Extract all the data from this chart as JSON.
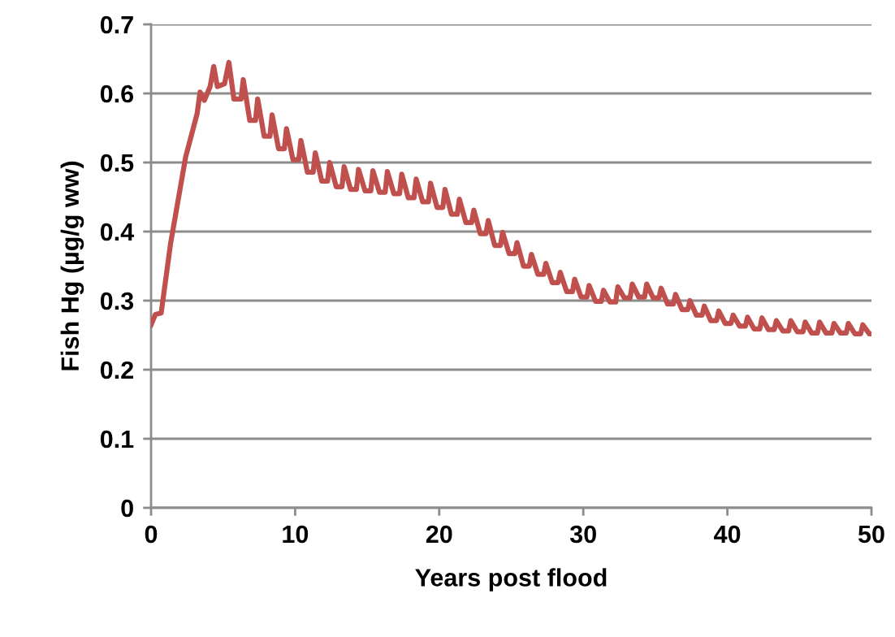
{
  "chart_data": {
    "type": "line",
    "xlabel": "Years post flood",
    "ylabel": "Fish Hg (µg/g ww)",
    "xlim": [
      0,
      50
    ],
    "xticks": [
      0,
      10,
      20,
      30,
      40,
      50
    ],
    "ylim": [
      0,
      0.7
    ],
    "yticks": [
      0,
      0.1,
      0.2,
      0.3,
      0.4,
      0.5,
      0.6,
      0.7
    ],
    "grid": "y",
    "marker": "none",
    "line_style": "solid",
    "series": [
      {
        "color": "#c0504d",
        "x": [
          0,
          0.3,
          0.7,
          1.35,
          2.4,
          3.2,
          3.4,
          3.7,
          4.1,
          4.35,
          4.6,
          5.1,
          5.4,
          5.75,
          6.25,
          6.4,
          6.85,
          7.25,
          7.4,
          7.85,
          8.25,
          8.4,
          8.85,
          9.25,
          9.4,
          9.85,
          10.25,
          10.4,
          10.85,
          11.25,
          11.4,
          11.85,
          12.25,
          12.4,
          12.85,
          13.25,
          13.4,
          13.85,
          14.25,
          14.4,
          14.85,
          15.25,
          15.4,
          15.85,
          16.25,
          16.4,
          16.85,
          17.25,
          17.4,
          17.85,
          18.25,
          18.4,
          18.85,
          19.25,
          19.4,
          19.85,
          20.25,
          20.4,
          20.85,
          21.25,
          21.4,
          21.85,
          22.25,
          22.4,
          22.85,
          23.25,
          23.4,
          23.85,
          24.25,
          24.4,
          24.85,
          25.25,
          25.4,
          25.85,
          26.25,
          26.4,
          26.85,
          27.25,
          27.4,
          27.85,
          28.25,
          28.4,
          28.85,
          29.25,
          29.4,
          29.85,
          30.25,
          30.4,
          30.85,
          31.25,
          31.4,
          31.85,
          32.25,
          32.4,
          32.85,
          33.25,
          33.4,
          33.85,
          34.25,
          34.4,
          34.85,
          35.25,
          35.4,
          35.85,
          36.25,
          36.4,
          36.85,
          37.25,
          37.4,
          37.85,
          38.25,
          38.4,
          38.85,
          39.25,
          39.4,
          39.85,
          40.25,
          40.4,
          40.85,
          41.25,
          41.4,
          41.85,
          42.25,
          42.4,
          42.85,
          43.25,
          43.4,
          43.85,
          44.25,
          44.4,
          44.85,
          45.25,
          45.4,
          45.85,
          46.25,
          46.4,
          46.85,
          47.25,
          47.4,
          47.85,
          48.25,
          48.4,
          48.85,
          49.25,
          49.4,
          49.85,
          50
        ],
        "values": [
          0.265,
          0.28,
          0.282,
          0.382,
          0.508,
          0.571,
          0.602,
          0.59,
          0.61,
          0.639,
          0.61,
          0.614,
          0.645,
          0.592,
          0.592,
          0.62,
          0.561,
          0.561,
          0.592,
          0.538,
          0.538,
          0.569,
          0.52,
          0.52,
          0.549,
          0.504,
          0.504,
          0.532,
          0.486,
          0.486,
          0.514,
          0.473,
          0.473,
          0.5,
          0.465,
          0.465,
          0.494,
          0.461,
          0.461,
          0.49,
          0.459,
          0.459,
          0.488,
          0.457,
          0.457,
          0.487,
          0.455,
          0.455,
          0.483,
          0.449,
          0.449,
          0.476,
          0.443,
          0.443,
          0.47,
          0.435,
          0.435,
          0.461,
          0.425,
          0.425,
          0.447,
          0.413,
          0.413,
          0.431,
          0.397,
          0.397,
          0.416,
          0.38,
          0.38,
          0.399,
          0.368,
          0.368,
          0.384,
          0.35,
          0.35,
          0.367,
          0.338,
          0.338,
          0.354,
          0.326,
          0.326,
          0.341,
          0.313,
          0.313,
          0.331,
          0.305,
          0.305,
          0.322,
          0.299,
          0.299,
          0.315,
          0.298,
          0.298,
          0.32,
          0.304,
          0.304,
          0.324,
          0.305,
          0.305,
          0.324,
          0.304,
          0.304,
          0.318,
          0.295,
          0.295,
          0.309,
          0.287,
          0.287,
          0.3,
          0.279,
          0.279,
          0.292,
          0.271,
          0.271,
          0.285,
          0.267,
          0.267,
          0.279,
          0.263,
          0.263,
          0.276,
          0.259,
          0.259,
          0.275,
          0.258,
          0.258,
          0.271,
          0.256,
          0.256,
          0.271,
          0.255,
          0.255,
          0.269,
          0.253,
          0.253,
          0.269,
          0.253,
          0.253,
          0.267,
          0.253,
          0.253,
          0.267,
          0.252,
          0.252,
          0.265,
          0.252,
          0.252
        ]
      }
    ]
  }
}
